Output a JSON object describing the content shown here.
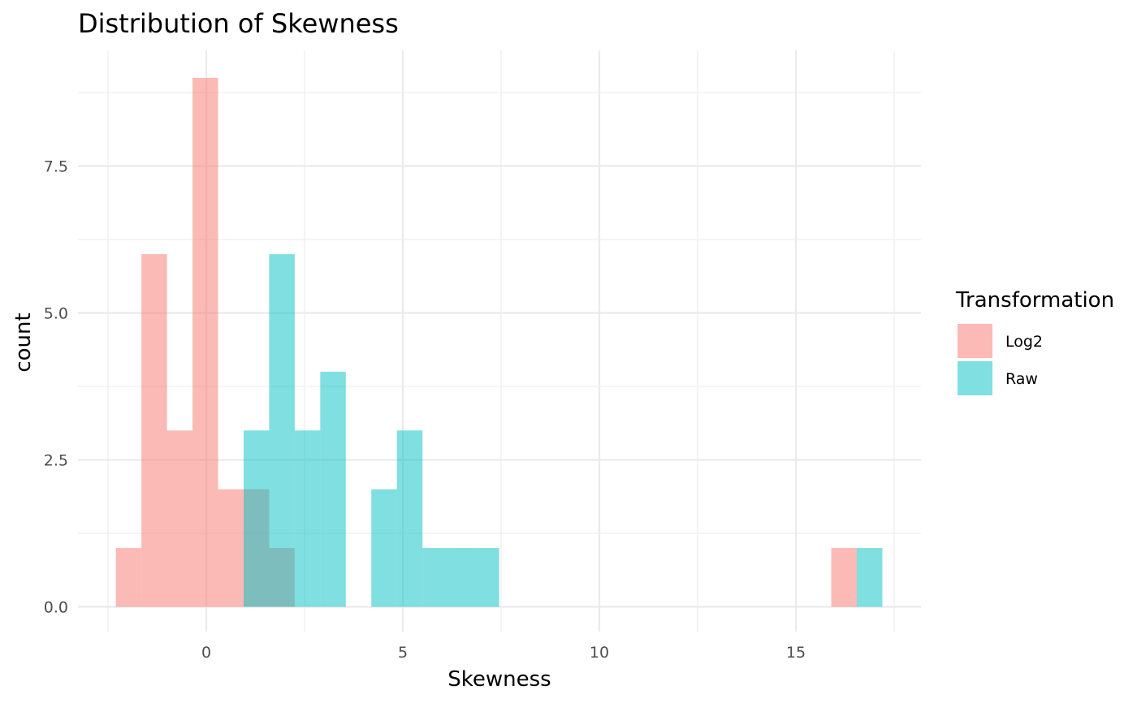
{
  "chart_data": {
    "type": "bar",
    "subtype": "histogram",
    "title": "Distribution of Skewness",
    "xlabel": "Skewness",
    "ylabel": "count",
    "xlim": [
      -2.5,
      18.1
    ],
    "ylim": [
      0,
      9.5
    ],
    "x_ticks": [
      0,
      5,
      10,
      15
    ],
    "x_tick_labels": [
      "0",
      "5",
      "10",
      "15"
    ],
    "y_ticks": [
      0,
      2.5,
      5,
      7.5
    ],
    "y_tick_labels": [
      "0.0",
      "2.5",
      "5.0",
      "7.5"
    ],
    "grid": true,
    "bin_width": 0.65,
    "legend": {
      "title": "Transformation",
      "position": "right"
    },
    "series": [
      {
        "name": "Log2",
        "color": "#F8766D",
        "opacity": 0.5,
        "bins": [
          {
            "x0": -2.3,
            "x1": -1.65,
            "count": 1
          },
          {
            "x0": -1.65,
            "x1": -1.0,
            "count": 6
          },
          {
            "x0": -1.0,
            "x1": -0.35,
            "count": 3
          },
          {
            "x0": -0.35,
            "x1": 0.3,
            "count": 9
          },
          {
            "x0": 0.3,
            "x1": 0.95,
            "count": 2
          },
          {
            "x0": 0.95,
            "x1": 1.6,
            "count": 2
          },
          {
            "x0": 1.6,
            "x1": 2.25,
            "count": 1
          },
          {
            "x0": 15.9,
            "x1": 16.55,
            "count": 1
          }
        ]
      },
      {
        "name": "Raw",
        "color": "#00BFC4",
        "opacity": 0.5,
        "bins": [
          {
            "x0": 0.95,
            "x1": 1.6,
            "count": 3
          },
          {
            "x0": 1.6,
            "x1": 2.25,
            "count": 6
          },
          {
            "x0": 2.25,
            "x1": 2.9,
            "count": 3
          },
          {
            "x0": 2.9,
            "x1": 3.55,
            "count": 4
          },
          {
            "x0": 4.2,
            "x1": 4.85,
            "count": 2
          },
          {
            "x0": 4.85,
            "x1": 5.5,
            "count": 3
          },
          {
            "x0": 5.5,
            "x1": 6.15,
            "count": 1
          },
          {
            "x0": 6.15,
            "x1": 6.8,
            "count": 1
          },
          {
            "x0": 6.8,
            "x1": 7.45,
            "count": 1
          },
          {
            "x0": 16.55,
            "x1": 17.2,
            "count": 1
          }
        ]
      }
    ]
  }
}
